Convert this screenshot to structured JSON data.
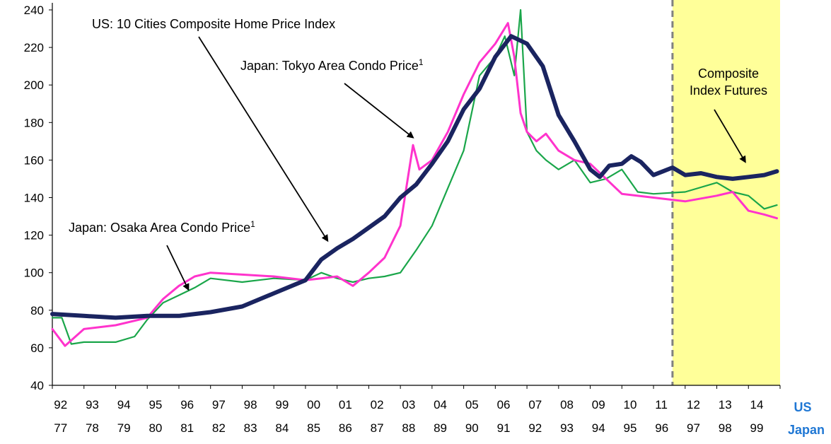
{
  "chart_data": {
    "type": "line",
    "title": "",
    "ylim": [
      40,
      240
    ],
    "y_ticks": [
      40,
      60,
      80,
      100,
      120,
      140,
      160,
      180,
      200,
      220,
      240
    ],
    "grid": false,
    "x_axis_us": {
      "label": "US",
      "ticks": [
        "92",
        "93",
        "94",
        "95",
        "96",
        "97",
        "98",
        "99",
        "00",
        "01",
        "02",
        "03",
        "04",
        "05",
        "06",
        "07",
        "08",
        "09",
        "10",
        "11",
        "12",
        "13",
        "14"
      ],
      "range": [
        1992,
        2015
      ]
    },
    "x_axis_japan": {
      "label": "Japan",
      "ticks": [
        "77",
        "78",
        "79",
        "80",
        "81",
        "82",
        "83",
        "84",
        "85",
        "86",
        "87",
        "88",
        "89",
        "90",
        "91",
        "92",
        "93",
        "94",
        "95",
        "96",
        "97",
        "98",
        "99"
      ],
      "range": [
        1977,
        2000
      ]
    },
    "futures_region_start_us": 2011.6,
    "colors": {
      "us": "#1a2460",
      "tokyo": "#ff33cc",
      "osaka": "#1aa64a",
      "futures_band": "#ffff99",
      "divider": "#808080"
    },
    "annotations": {
      "us": "US: 10 Cities Composite Home Price Index",
      "tokyo": "Japan: Tokyo Area Condo Price",
      "tokyo_sup": "1",
      "osaka": "Japan: Osaka Area Condo Price",
      "osaka_sup": "1",
      "futures_line1": "Composite",
      "futures_line2": "Index Futures"
    },
    "series": [
      {
        "key": "us",
        "name": "US: 10 Cities Composite Home Price Index",
        "x_axis": "us",
        "x": [
          1992.0,
          1993.0,
          1994.0,
          1995.0,
          1996.0,
          1997.0,
          1998.0,
          1999.0,
          2000.0,
          2000.5,
          2001.0,
          2001.5,
          2002.0,
          2002.5,
          2003.0,
          2003.5,
          2004.0,
          2004.5,
          2005.0,
          2005.5,
          2006.0,
          2006.5,
          2007.0,
          2007.5,
          2008.0,
          2008.5,
          2009.0,
          2009.3,
          2009.6,
          2010.0,
          2010.3,
          2010.6,
          2011.0,
          2011.3,
          2011.6,
          2012.0,
          2012.5,
          2013.0,
          2013.5,
          2014.0,
          2014.5,
          2014.9
        ],
        "y": [
          78,
          77,
          76,
          77,
          77,
          79,
          82,
          89,
          96,
          107,
          113,
          118,
          124,
          130,
          140,
          147,
          158,
          170,
          187,
          198,
          215,
          226,
          222,
          210,
          184,
          170,
          155,
          151,
          157,
          158,
          162,
          159,
          152,
          154,
          156,
          152,
          153,
          151,
          150,
          151,
          152,
          154
        ]
      },
      {
        "key": "tokyo",
        "name": "Japan: Tokyo Area Condo Price",
        "x_axis": "japan",
        "x": [
          1977.0,
          1977.4,
          1978.0,
          1979.0,
          1980.0,
          1980.5,
          1981.0,
          1981.5,
          1982.0,
          1983.0,
          1984.0,
          1985.0,
          1985.5,
          1986.0,
          1986.5,
          1987.0,
          1987.5,
          1988.0,
          1988.4,
          1988.6,
          1989.0,
          1989.5,
          1990.0,
          1990.5,
          1991.0,
          1991.4,
          1991.6,
          1991.8,
          1992.0,
          1992.3,
          1992.6,
          1993.0,
          1993.5,
          1994.0,
          1995.0,
          1996.0,
          1997.0,
          1998.0,
          1998.5,
          1999.0,
          1999.5,
          1999.9
        ],
        "y": [
          70,
          61,
          70,
          72,
          76,
          86,
          93,
          98,
          100,
          99,
          98,
          96,
          97,
          98,
          93,
          100,
          108,
          125,
          168,
          155,
          160,
          175,
          195,
          212,
          222,
          233,
          215,
          185,
          175,
          170,
          174,
          165,
          160,
          158,
          142,
          140,
          138,
          141,
          143,
          133,
          131,
          129
        ]
      },
      {
        "key": "osaka",
        "name": "Japan: Osaka Area Condo Price",
        "x_axis": "japan",
        "x": [
          1977.0,
          1977.3,
          1977.6,
          1978.0,
          1979.0,
          1979.6,
          1980.0,
          1980.5,
          1981.0,
          1981.5,
          1982.0,
          1983.0,
          1984.0,
          1985.0,
          1985.5,
          1986.0,
          1986.5,
          1987.0,
          1987.5,
          1988.0,
          1988.5,
          1989.0,
          1989.5,
          1990.0,
          1990.5,
          1991.0,
          1991.3,
          1991.6,
          1991.8,
          1992.0,
          1992.3,
          1992.6,
          1993.0,
          1993.5,
          1994.0,
          1994.5,
          1995.0,
          1995.5,
          1996.0,
          1997.0,
          1998.0,
          1998.5,
          1999.0,
          1999.5,
          1999.9
        ],
        "y": [
          76,
          76,
          62,
          63,
          63,
          66,
          75,
          84,
          88,
          92,
          97,
          95,
          97,
          96,
          100,
          97,
          95,
          97,
          98,
          100,
          112,
          125,
          145,
          165,
          205,
          215,
          226,
          205,
          240,
          175,
          165,
          160,
          155,
          160,
          148,
          150,
          155,
          143,
          142,
          143,
          148,
          143,
          141,
          134,
          136
        ]
      }
    ]
  }
}
